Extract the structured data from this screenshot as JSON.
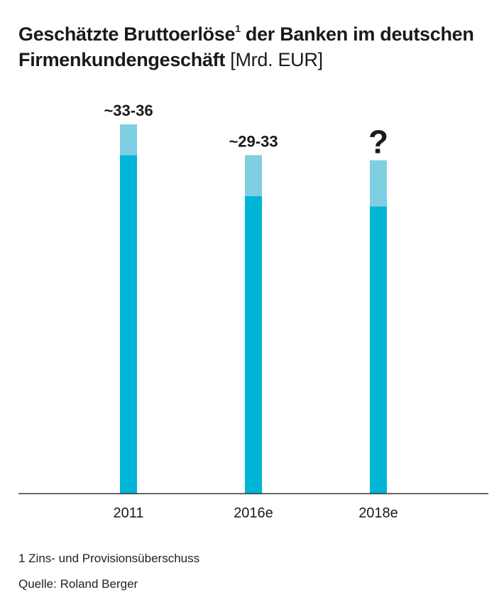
{
  "title": {
    "main": "Geschätzte Bruttoerlöse",
    "superscript": "1",
    "rest": " der Banken im deutschen Firmenkundengeschäft ",
    "unit": "[Mrd. EUR]"
  },
  "chart_data": {
    "type": "bar",
    "categories": [
      "2011",
      "2016e",
      "2018e"
    ],
    "series": [
      {
        "values": [
          33,
          29,
          28
        ]
      },
      {
        "values": [
          3,
          4,
          4.5
        ]
      }
    ],
    "data_labels": [
      "~33-36",
      "~29-33",
      "?"
    ],
    "ylim": [
      0,
      36
    ],
    "grid": false,
    "colors": {
      "base": "#00b5d6",
      "range": "#7fcfe3",
      "axis": "#333333"
    }
  },
  "footnotes": [
    "1 Zins- und Provisionsüberschuss",
    "Quelle: Roland Berger"
  ]
}
